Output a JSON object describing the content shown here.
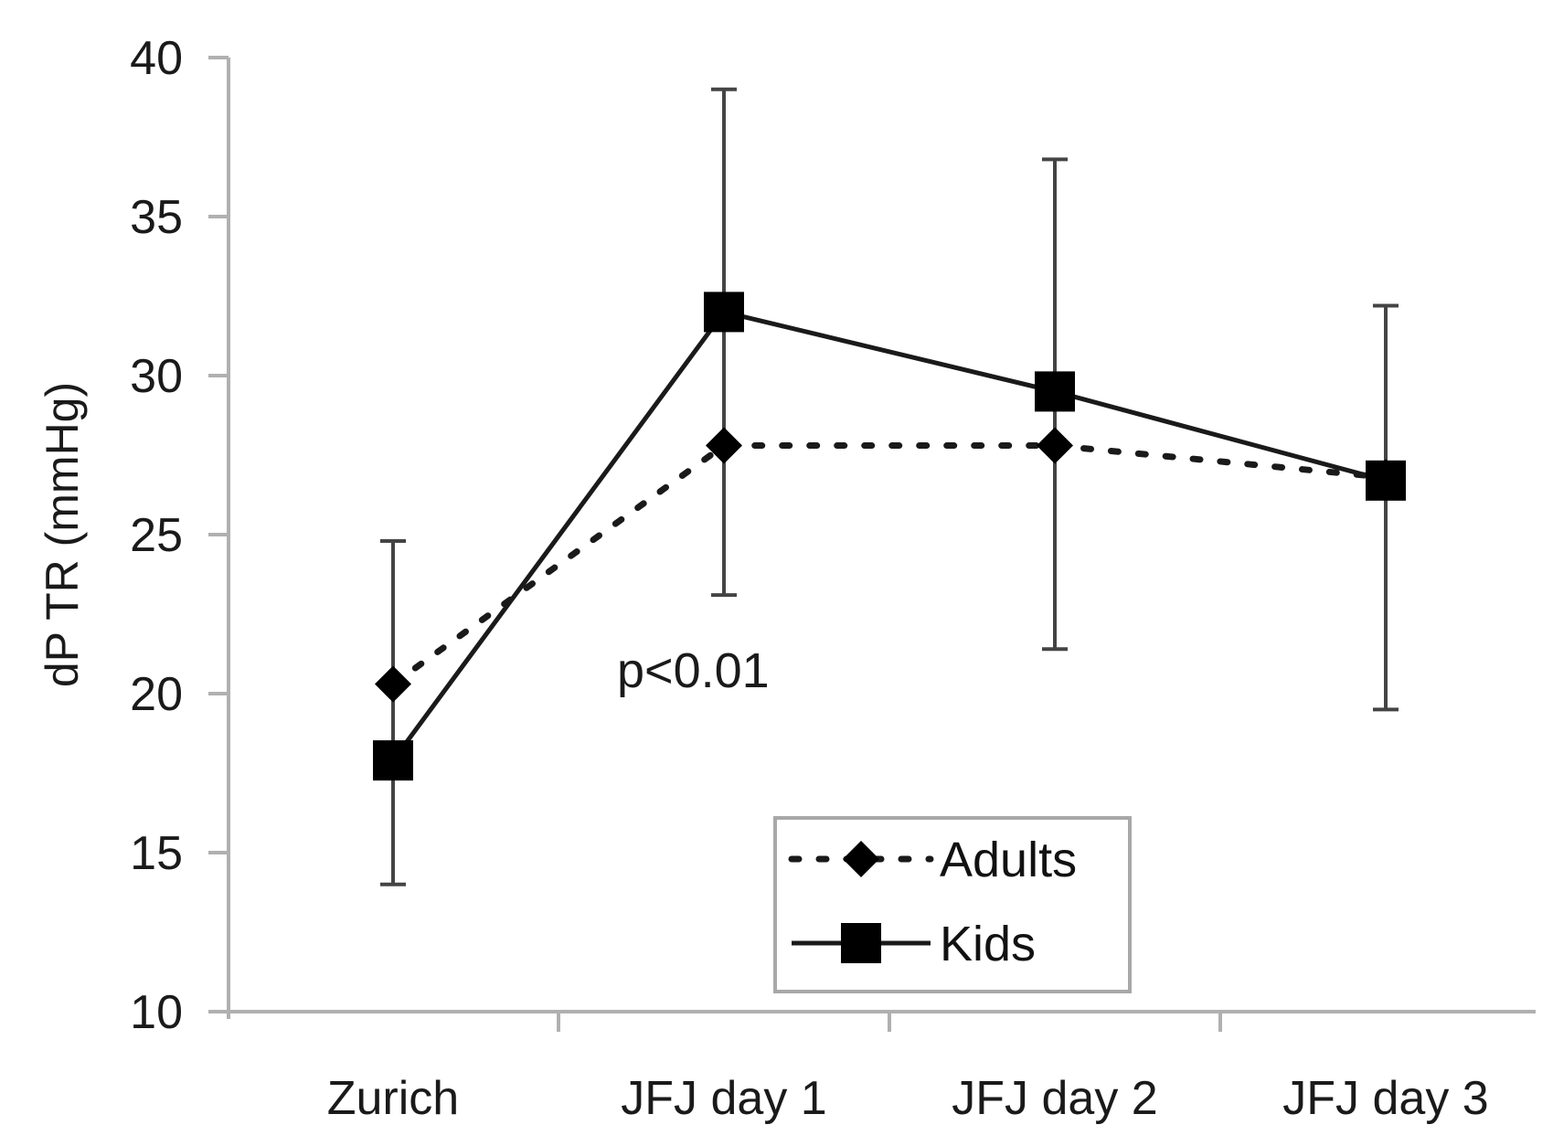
{
  "chart_data": {
    "type": "line",
    "categories": [
      "Zurich",
      "JFJ day 1",
      "JFJ day 2",
      "JFJ day 3"
    ],
    "ylabel": "dP TR (mmHg)",
    "ylim": [
      10,
      40
    ],
    "yticks": [
      "10",
      "15",
      "20",
      "25",
      "30",
      "35",
      "40"
    ],
    "annotation": "p<0.01",
    "series": [
      {
        "name": "Adults",
        "style": "dotted",
        "marker": "diamond",
        "values": [
          20.3,
          27.8,
          27.8,
          26.8
        ],
        "error_bars": [
          {
            "low": 14.0,
            "high": 24.8
          },
          {
            "low": 23.1,
            "high": 39.0
          },
          {
            "low": 21.4,
            "high": 36.8
          },
          {
            "low": 19.5,
            "high": 32.2
          }
        ]
      },
      {
        "name": "Kids",
        "style": "solid",
        "marker": "square",
        "values": [
          17.9,
          32.0,
          29.5,
          26.7
        ]
      }
    ],
    "legend_position": "bottom-center",
    "grid": false,
    "colors": {
      "line": "#1a1a1a",
      "axis": "#b0b0b0",
      "errorbar": "#444444",
      "legend_border": "#a8a8a8"
    }
  }
}
